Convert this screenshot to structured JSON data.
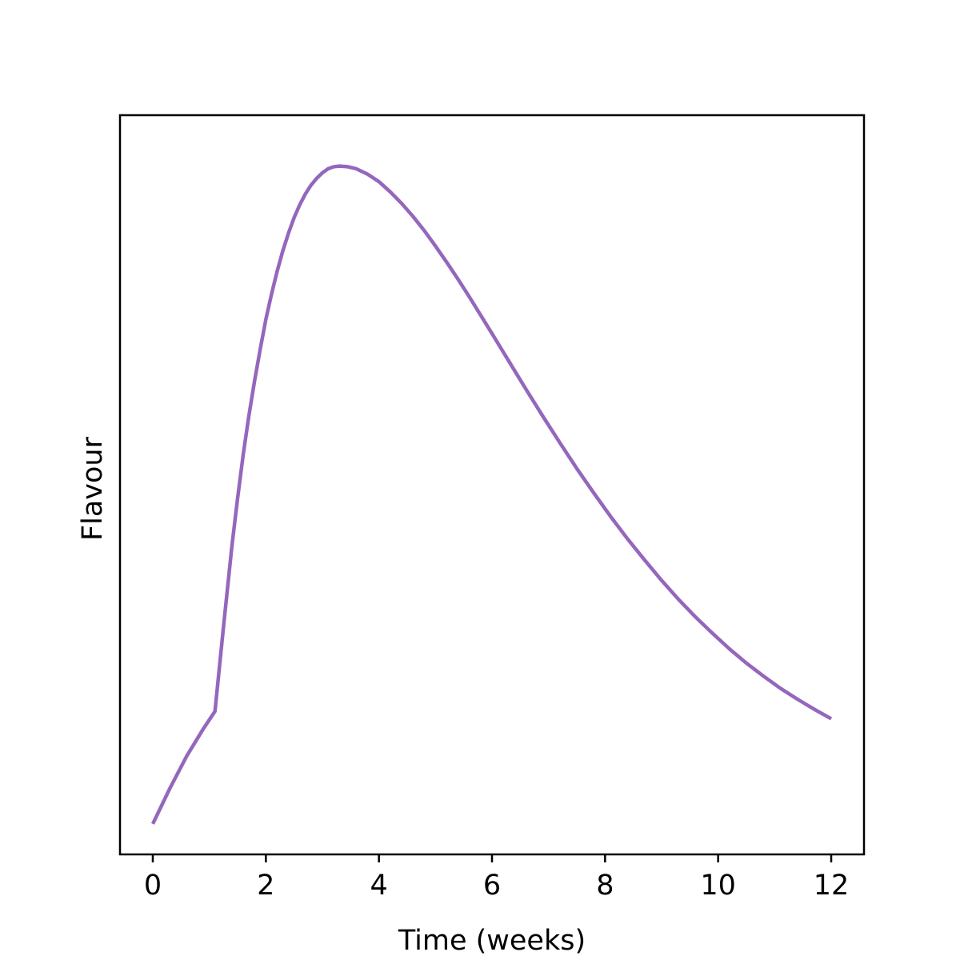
{
  "chart_data": {
    "type": "line",
    "title": "",
    "xlabel": "Time (weeks)",
    "ylabel": "Flavour",
    "xlim": [
      -0.58,
      12.58
    ],
    "ylim": [
      -0.045,
      1.045
    ],
    "x_ticks": [
      0,
      2,
      4,
      6,
      8,
      10,
      12
    ],
    "x_tick_labels": [
      "0",
      "2",
      "4",
      "6",
      "8",
      "10",
      "12"
    ],
    "y_ticks": [],
    "grid": false,
    "legend": "none",
    "series": [
      {
        "color": "#9467bd",
        "x": [
          0,
          0.3,
          0.6,
          0.9,
          1.1,
          1.25,
          1.4,
          1.5,
          1.6,
          1.7,
          1.8,
          1.9,
          2.0,
          2.1,
          2.2,
          2.3,
          2.4,
          2.5,
          2.6,
          2.7,
          2.8,
          2.9,
          3.0,
          3.1,
          3.2,
          3.3,
          3.45,
          3.6,
          3.8,
          4.0,
          4.2,
          4.4,
          4.6,
          4.8,
          5.0,
          5.2,
          5.4,
          5.6,
          5.8,
          6.0,
          6.3,
          6.6,
          6.9,
          7.2,
          7.5,
          7.8,
          8.1,
          8.4,
          8.7,
          9.0,
          9.3,
          9.6,
          9.9,
          10.2,
          10.5,
          10.8,
          11.1,
          11.4,
          11.7,
          12.0
        ],
        "y": [
          0.0,
          0.052,
          0.1,
          0.141,
          0.166,
          0.29,
          0.41,
          0.48,
          0.545,
          0.602,
          0.653,
          0.7,
          0.744,
          0.781,
          0.815,
          0.845,
          0.871,
          0.894,
          0.913,
          0.929,
          0.942,
          0.952,
          0.96,
          0.966,
          0.969,
          0.97,
          0.969,
          0.966,
          0.958,
          0.947,
          0.932,
          0.915,
          0.896,
          0.875,
          0.852,
          0.828,
          0.803,
          0.777,
          0.75,
          0.723,
          0.682,
          0.641,
          0.601,
          0.562,
          0.524,
          0.488,
          0.453,
          0.42,
          0.389,
          0.359,
          0.331,
          0.305,
          0.281,
          0.258,
          0.237,
          0.218,
          0.2,
          0.184,
          0.169,
          0.155
        ]
      }
    ]
  }
}
